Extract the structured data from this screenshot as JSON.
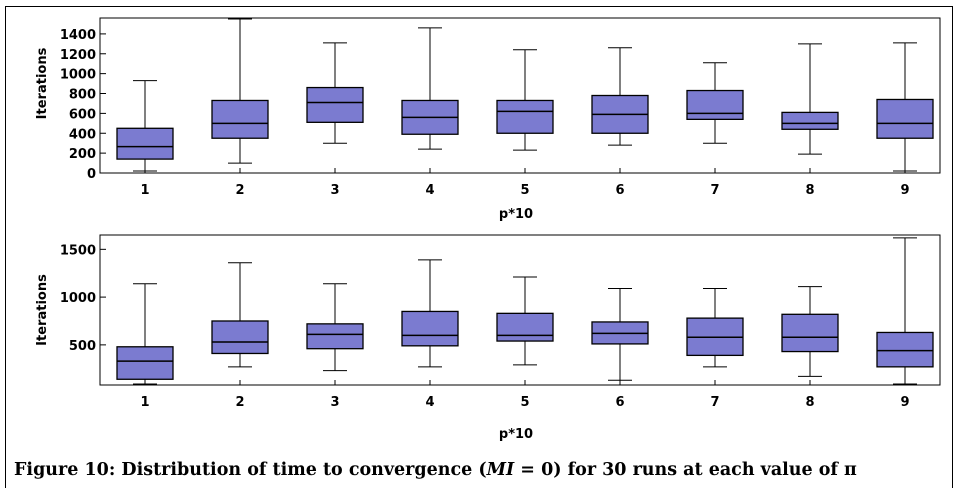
{
  "caption": {
    "label": "Figure 10:",
    "text_before": "Distribution of time to convergence (",
    "var": "MI",
    "text_after": " = 0) for 30 runs at each value of",
    "symbol": "π"
  },
  "chart_data": [
    {
      "type": "box",
      "xlabel": "p*10",
      "ylabel": "Iterations",
      "categories": [
        "1",
        "2",
        "3",
        "4",
        "5",
        "6",
        "7",
        "8",
        "9"
      ],
      "yticks": [
        "0",
        "200",
        "400",
        "600",
        "800",
        "1000",
        "1200",
        "1400"
      ],
      "ylim": [
        0,
        1560
      ],
      "boxes": [
        {
          "min": 20,
          "q1": 140,
          "median": 265,
          "q3": 450,
          "max": 930
        },
        {
          "min": 100,
          "q1": 350,
          "median": 500,
          "q3": 730,
          "max": 1550
        },
        {
          "min": 300,
          "q1": 510,
          "median": 710,
          "q3": 860,
          "max": 1310
        },
        {
          "min": 240,
          "q1": 390,
          "median": 560,
          "q3": 730,
          "max": 1460
        },
        {
          "min": 230,
          "q1": 400,
          "median": 620,
          "q3": 730,
          "max": 1240
        },
        {
          "min": 280,
          "q1": 400,
          "median": 590,
          "q3": 780,
          "max": 1260
        },
        {
          "min": 300,
          "q1": 540,
          "median": 600,
          "q3": 830,
          "max": 1110
        },
        {
          "min": 190,
          "q1": 440,
          "median": 500,
          "q3": 610,
          "max": 1300
        },
        {
          "min": 20,
          "q1": 350,
          "median": 500,
          "q3": 740,
          "max": 1310
        }
      ]
    },
    {
      "type": "box",
      "xlabel": "p*10",
      "ylabel": "Iterations",
      "categories": [
        "1",
        "2",
        "3",
        "4",
        "5",
        "6",
        "7",
        "8",
        "9"
      ],
      "yticks": [
        "500",
        "1000",
        "1500"
      ],
      "ylim": [
        80,
        1650
      ],
      "boxes": [
        {
          "min": 90,
          "q1": 140,
          "median": 330,
          "q3": 480,
          "max": 1140
        },
        {
          "min": 270,
          "q1": 410,
          "median": 530,
          "q3": 750,
          "max": 1360
        },
        {
          "min": 230,
          "q1": 460,
          "median": 610,
          "q3": 720,
          "max": 1140
        },
        {
          "min": 270,
          "q1": 490,
          "median": 600,
          "q3": 850,
          "max": 1390
        },
        {
          "min": 290,
          "q1": 540,
          "median": 600,
          "q3": 830,
          "max": 1210
        },
        {
          "min": 130,
          "q1": 510,
          "median": 620,
          "q3": 740,
          "max": 1090
        },
        {
          "min": 270,
          "q1": 390,
          "median": 580,
          "q3": 780,
          "max": 1090
        },
        {
          "min": 170,
          "q1": 430,
          "median": 580,
          "q3": 820,
          "max": 1110
        },
        {
          "min": 90,
          "q1": 270,
          "median": 440,
          "q3": 630,
          "max": 1620
        }
      ]
    }
  ],
  "colors": {
    "box_fill": "#7b7bd0",
    "stroke": "#000000"
  }
}
